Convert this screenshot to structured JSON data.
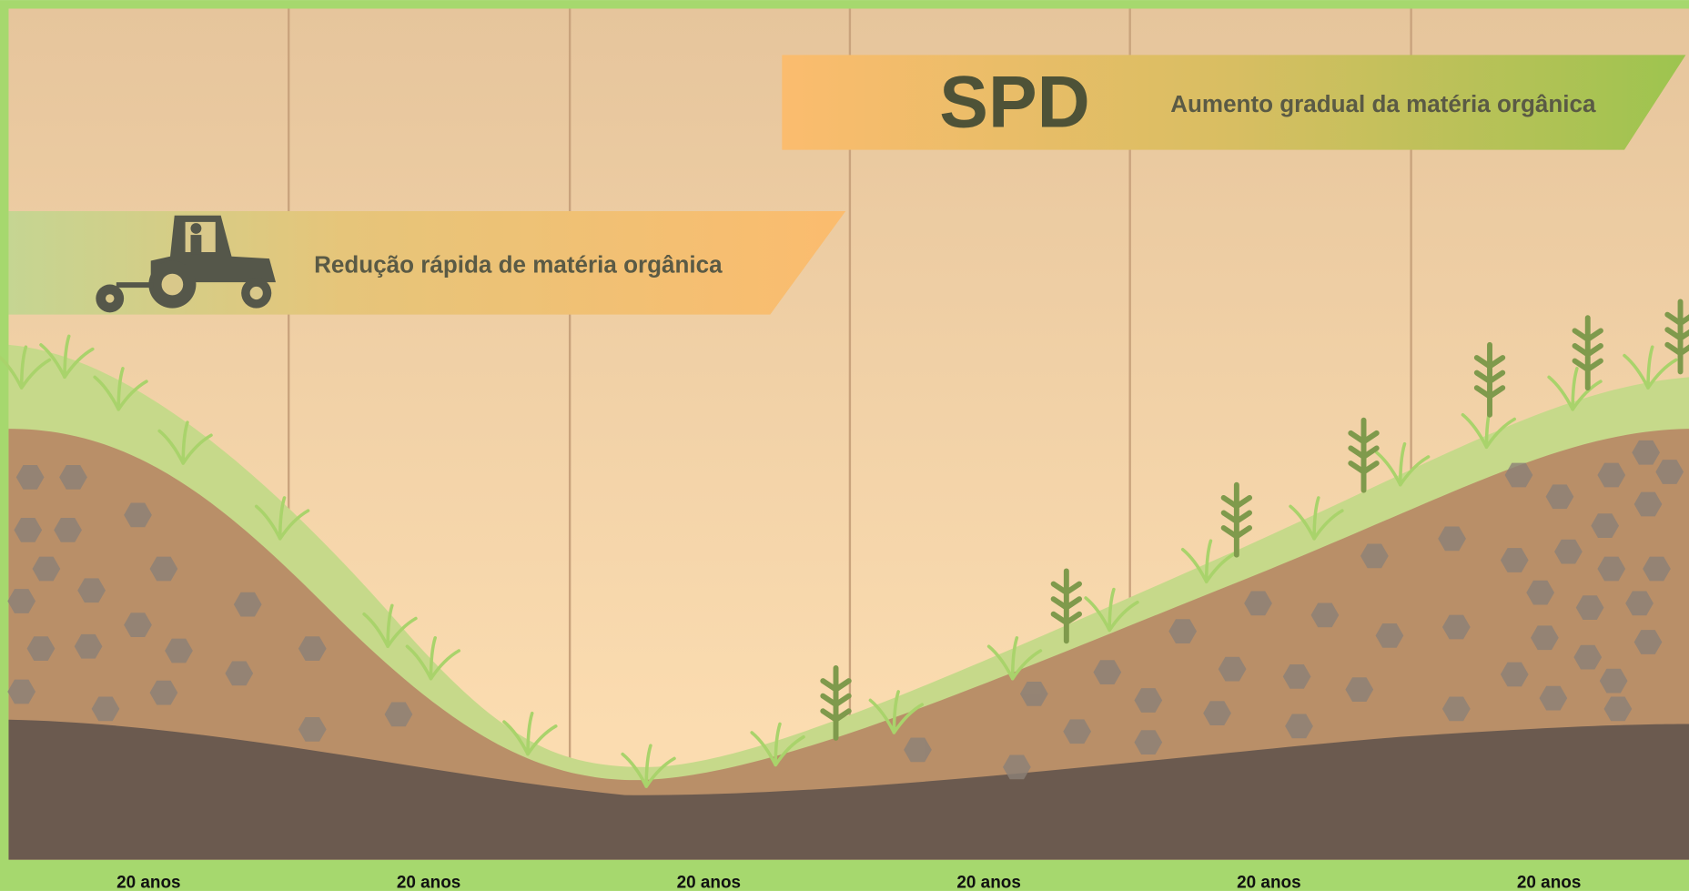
{
  "banners": {
    "spd": {
      "title": "SPD",
      "text": "Aumento gradual da matéria orgânica"
    },
    "conventional": {
      "text": "Redução rápida de matéria orgânica"
    }
  },
  "periods": [
    "20 anos",
    "20 anos",
    "20 anos",
    "20 anos",
    "20 anos",
    "20 anos"
  ]
}
